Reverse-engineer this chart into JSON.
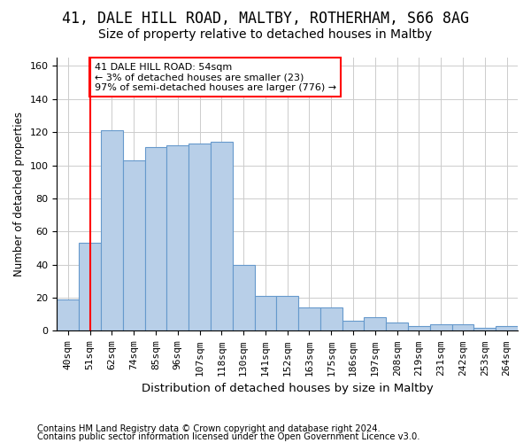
{
  "title1": "41, DALE HILL ROAD, MALTBY, ROTHERHAM, S66 8AG",
  "title2": "Size of property relative to detached houses in Maltby",
  "xlabel": "Distribution of detached houses by size in Maltby",
  "ylabel": "Number of detached properties",
  "categories": [
    "40sqm",
    "51sqm",
    "62sqm",
    "74sqm",
    "85sqm",
    "96sqm",
    "107sqm",
    "118sqm",
    "130sqm",
    "141sqm",
    "152sqm",
    "163sqm",
    "175sqm",
    "186sqm",
    "197sqm",
    "208sqm",
    "219sqm",
    "231sqm",
    "242sqm",
    "253sqm",
    "264sqm"
  ],
  "values": [
    19,
    53,
    121,
    103,
    111,
    112,
    113,
    114,
    40,
    21,
    21,
    14,
    14,
    6,
    8,
    5,
    3,
    4,
    4,
    2,
    3
  ],
  "bar_color": "#b8cfe8",
  "bar_edge_color": "#6699cc",
  "red_line_x": 1,
  "annotation_text": "41 DALE HILL ROAD: 54sqm\n← 3% of detached houses are smaller (23)\n97% of semi-detached houses are larger (776) →",
  "annotation_box_color": "white",
  "annotation_box_edge_color": "red",
  "red_line_color": "red",
  "ylim": [
    0,
    165
  ],
  "yticks": [
    0,
    20,
    40,
    60,
    80,
    100,
    120,
    140,
    160
  ],
  "grid_color": "#cccccc",
  "background_color": "white",
  "footnote1": "Contains HM Land Registry data © Crown copyright and database right 2024.",
  "footnote2": "Contains public sector information licensed under the Open Government Licence v3.0.",
  "title1_fontsize": 12,
  "title2_fontsize": 10,
  "xlabel_fontsize": 9.5,
  "ylabel_fontsize": 8.5,
  "tick_fontsize": 8,
  "footnote_fontsize": 7.2
}
